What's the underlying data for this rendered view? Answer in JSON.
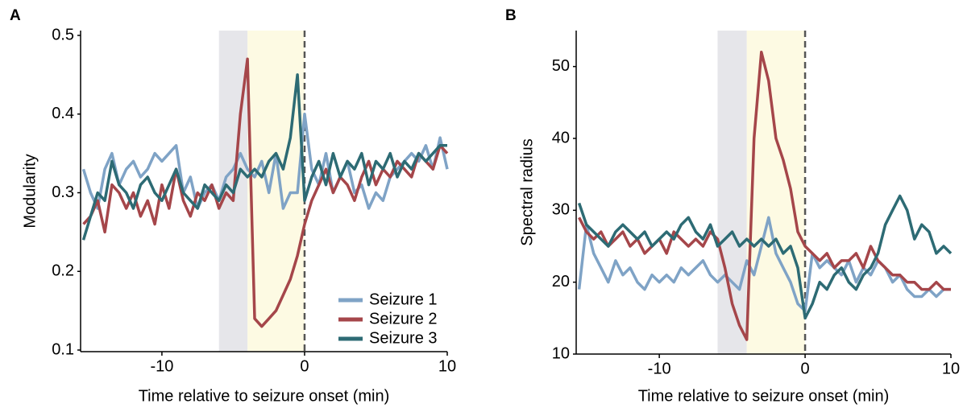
{
  "chart_data": [
    {
      "type": "line",
      "panel_label": "A",
      "ylabel": "Modularity",
      "xlabel": "Time relative to seizure onset (min)",
      "x": [
        -15.5,
        -15,
        -14.5,
        -14,
        -13.5,
        -13,
        -12.5,
        -12,
        -11.5,
        -11,
        -10.5,
        -10,
        -9.5,
        -9,
        -8.5,
        -8,
        -7.5,
        -7,
        -6.5,
        -6,
        -5.5,
        -5,
        -4.5,
        -4,
        -3.5,
        -3,
        -2.5,
        -2,
        -1.5,
        -1,
        -0.5,
        0,
        0.5,
        1,
        1.5,
        2,
        2.5,
        3,
        3.5,
        4,
        4.5,
        5,
        5.5,
        6,
        6.5,
        7,
        7.5,
        8,
        8.5,
        9,
        9.5,
        10
      ],
      "series": [
        {
          "name": "Seizure 1",
          "color": "#7fa3c6",
          "values": [
            0.33,
            0.3,
            0.28,
            0.33,
            0.35,
            0.31,
            0.33,
            0.34,
            0.32,
            0.33,
            0.35,
            0.34,
            0.35,
            0.36,
            0.3,
            0.32,
            0.28,
            0.3,
            0.31,
            0.29,
            0.32,
            0.33,
            0.35,
            0.33,
            0.32,
            0.34,
            0.3,
            0.35,
            0.28,
            0.3,
            0.3,
            0.4,
            0.33,
            0.31,
            0.35,
            0.3,
            0.32,
            0.34,
            0.3,
            0.31,
            0.28,
            0.3,
            0.29,
            0.32,
            0.33,
            0.34,
            0.35,
            0.34,
            0.36,
            0.33,
            0.37,
            0.33
          ]
        },
        {
          "name": "Seizure 2",
          "color": "#a5464a",
          "values": [
            0.26,
            0.27,
            0.29,
            0.25,
            0.31,
            0.3,
            0.28,
            0.3,
            0.27,
            0.29,
            0.26,
            0.31,
            0.28,
            0.33,
            0.29,
            0.27,
            0.3,
            0.29,
            0.31,
            0.28,
            0.3,
            0.29,
            0.4,
            0.47,
            0.14,
            0.13,
            0.14,
            0.15,
            0.17,
            0.19,
            0.22,
            0.26,
            0.29,
            0.31,
            0.33,
            0.3,
            0.32,
            0.31,
            0.29,
            0.32,
            0.34,
            0.31,
            0.33,
            0.32,
            0.34,
            0.33,
            0.32,
            0.35,
            0.34,
            0.33,
            0.36,
            0.35
          ]
        },
        {
          "name": "Seizure 3",
          "color": "#2d6b74",
          "values": [
            0.24,
            0.27,
            0.3,
            0.29,
            0.34,
            0.31,
            0.3,
            0.28,
            0.31,
            0.32,
            0.3,
            0.29,
            0.31,
            0.33,
            0.3,
            0.29,
            0.28,
            0.31,
            0.3,
            0.29,
            0.31,
            0.3,
            0.33,
            0.32,
            0.33,
            0.32,
            0.34,
            0.35,
            0.33,
            0.37,
            0.45,
            0.29,
            0.32,
            0.34,
            0.31,
            0.35,
            0.32,
            0.34,
            0.33,
            0.35,
            0.31,
            0.34,
            0.33,
            0.35,
            0.32,
            0.34,
            0.33,
            0.35,
            0.34,
            0.35,
            0.36,
            0.36
          ]
        }
      ],
      "xlim": [
        -15.7,
        10
      ],
      "xticks": [
        -10,
        0,
        10
      ],
      "ylim": [
        0.1,
        0.5
      ],
      "yticks": [
        0.1,
        0.2,
        0.3,
        0.4,
        0.5
      ],
      "shaded_regions": [
        {
          "start": -6,
          "end": -4,
          "color": "#e6e6ea"
        },
        {
          "start": -4,
          "end": 0,
          "color": "#fdfae3"
        }
      ],
      "onset_line": 0,
      "legend": "lower right"
    },
    {
      "type": "line",
      "panel_label": "B",
      "ylabel": "Spectral radius",
      "xlabel": "Time relative to seizure onset (min)",
      "x": [
        -15.5,
        -15,
        -14.5,
        -14,
        -13.5,
        -13,
        -12.5,
        -12,
        -11.5,
        -11,
        -10.5,
        -10,
        -9.5,
        -9,
        -8.5,
        -8,
        -7.5,
        -7,
        -6.5,
        -6,
        -5.5,
        -5,
        -4.5,
        -4,
        -3.5,
        -3,
        -2.5,
        -2,
        -1.5,
        -1,
        -0.5,
        0,
        0.5,
        1,
        1.5,
        2,
        2.5,
        3,
        3.5,
        4,
        4.5,
        5,
        5.5,
        6,
        6.5,
        7,
        7.5,
        8,
        8.5,
        9,
        9.5,
        10
      ],
      "series": [
        {
          "color": "#7fa3c6",
          "values": [
            19,
            28,
            24,
            22,
            20,
            23,
            21,
            22,
            20,
            19,
            21,
            20,
            21,
            20,
            22,
            21,
            22,
            23,
            21,
            20,
            21,
            20,
            19,
            23,
            21,
            25,
            29,
            24,
            22,
            20,
            17,
            16,
            24,
            22,
            23,
            22,
            21,
            23,
            20,
            22,
            21,
            23,
            22,
            20,
            21,
            19,
            18,
            18,
            19,
            18,
            19,
            19
          ]
        },
        {
          "color": "#a5464a",
          "values": [
            29,
            27,
            26,
            27,
            25,
            26,
            27,
            25,
            26,
            24,
            25,
            26,
            24,
            27,
            26,
            25,
            26,
            25,
            27,
            26,
            22,
            17,
            14,
            12,
            40,
            52,
            48,
            40,
            37,
            33,
            27,
            25,
            24,
            23,
            24,
            22,
            23,
            23,
            24,
            22,
            25,
            23,
            22,
            21,
            21,
            20,
            20,
            19,
            19,
            20,
            19,
            19
          ]
        },
        {
          "color": "#2d6b74",
          "values": [
            31,
            28,
            27,
            26,
            25,
            27,
            28,
            27,
            26,
            27,
            25,
            26,
            27,
            26,
            28,
            29,
            27,
            26,
            28,
            25,
            26,
            27,
            25,
            26,
            25,
            26,
            25,
            26,
            24,
            25,
            22,
            15,
            17,
            20,
            19,
            21,
            22,
            20,
            19,
            21,
            22,
            24,
            28,
            30,
            32,
            30,
            26,
            28,
            27,
            24,
            25,
            24
          ]
        }
      ],
      "xlim": [
        -15.7,
        10
      ],
      "xticks": [
        -10,
        0,
        10
      ],
      "ylim": [
        10,
        55
      ],
      "yticks": [
        10,
        20,
        30,
        40,
        50
      ],
      "shaded_regions": [
        {
          "start": -6,
          "end": -4,
          "color": "#e6e6ea"
        },
        {
          "start": -4,
          "end": 0,
          "color": "#fdfae3"
        }
      ],
      "onset_line": 0
    }
  ]
}
